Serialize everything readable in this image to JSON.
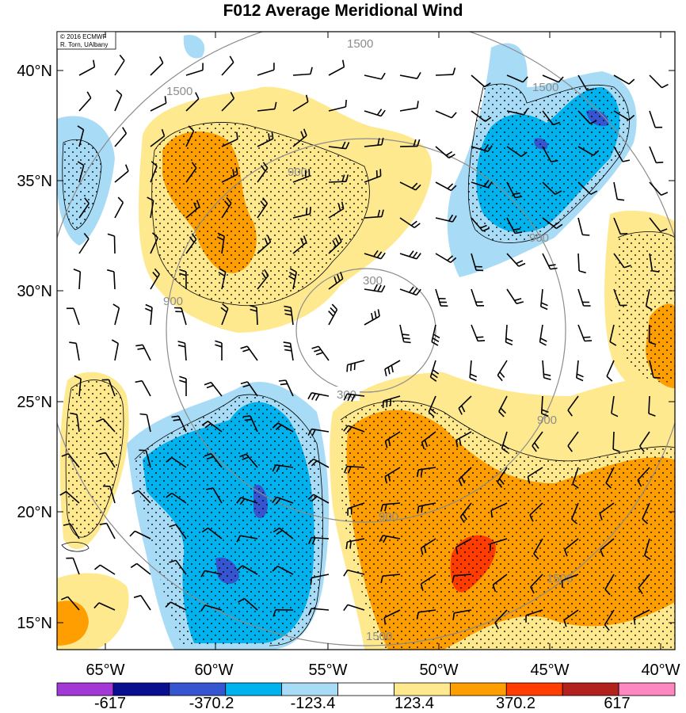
{
  "title": "F012 Average Meridional Wind",
  "credit": {
    "line1": "© 2016 ECMWF",
    "line2": "R. Torn, UAlbany"
  },
  "latitude_labels": [
    "40°N",
    "35°N",
    "30°N",
    "25°N",
    "20°N",
    "15°N"
  ],
  "longitude_labels": [
    "65°W",
    "60°W",
    "55°W",
    "50°W",
    "45°W",
    "40°W"
  ],
  "colorbar": {
    "labels": [
      "-617",
      "-370.2",
      "-123.4",
      "123.4",
      "370.2",
      "617"
    ],
    "colors": [
      "#a238d6",
      "#0a0e91",
      "#3556d0",
      "#00b2ee",
      "#a8dcf6",
      "#ffffff",
      "#ffe98f",
      "#ff9e00",
      "#ff3d00",
      "#b3211d",
      "#ff87c1"
    ]
  },
  "isolines": {
    "color": "#8c8c8c",
    "labels": [
      "300",
      "300",
      "900",
      "900",
      "900",
      "900",
      "900",
      "1500",
      "1500",
      "1500",
      "1500",
      "1500"
    ]
  },
  "stippling": "dotted regions"
}
